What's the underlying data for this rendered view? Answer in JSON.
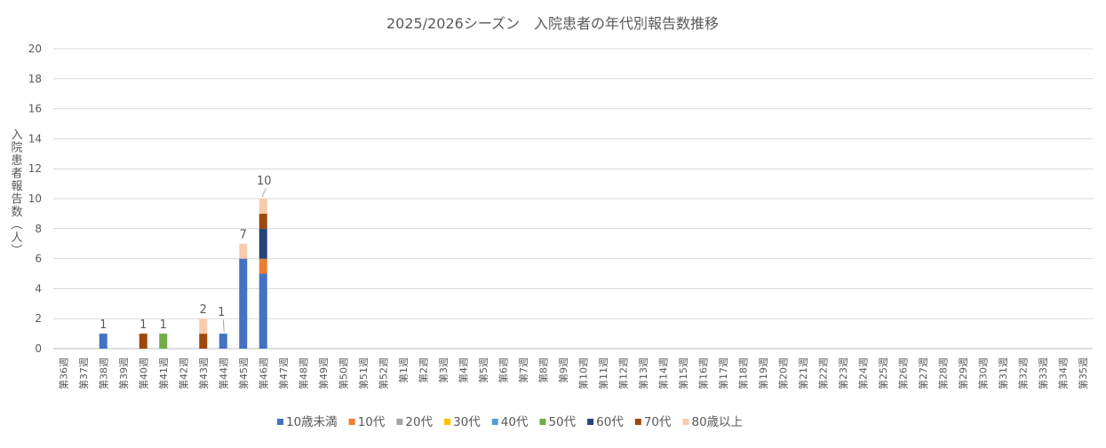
{
  "chart_data": {
    "type": "bar",
    "stacked": true,
    "title": "2025/2026シーズン　入院患者の年代別報告数推移",
    "ylabel": "入院患者報告数（人）",
    "xlabel": "",
    "ylim": [
      0,
      20
    ],
    "yticks": [
      0,
      2,
      4,
      6,
      8,
      10,
      12,
      14,
      16,
      18,
      20
    ],
    "grid": true,
    "legend_position": "bottom",
    "categories": [
      "第36週",
      "第37週",
      "第38週",
      "第39週",
      "第40週",
      "第41週",
      "第42週",
      "第43週",
      "第44週",
      "第45週",
      "第46週",
      "第47週",
      "第48週",
      "第49週",
      "第50週",
      "第51週",
      "第52週",
      "第1週",
      "第2週",
      "第3週",
      "第4週",
      "第5週",
      "第6週",
      "第7週",
      "第8週",
      "第9週",
      "第10週",
      "第11週",
      "第12週",
      "第13週",
      "第14週",
      "第15週",
      "第16週",
      "第17週",
      "第18週",
      "第19週",
      "第20週",
      "第21週",
      "第22週",
      "第23週",
      "第24週",
      "第25週",
      "第26週",
      "第27週",
      "第28週",
      "第29週",
      "第30週",
      "第31週",
      "第32週",
      "第33週",
      "第34週",
      "第35週"
    ],
    "series": [
      {
        "name": "10歳未満",
        "color": "#4472C4",
        "values": [
          0,
          0,
          1,
          0,
          0,
          0,
          0,
          0,
          1,
          6,
          5,
          0,
          0,
          0,
          0,
          0,
          0,
          0,
          0,
          0,
          0,
          0,
          0,
          0,
          0,
          0,
          0,
          0,
          0,
          0,
          0,
          0,
          0,
          0,
          0,
          0,
          0,
          0,
          0,
          0,
          0,
          0,
          0,
          0,
          0,
          0,
          0,
          0,
          0,
          0,
          0,
          0
        ]
      },
      {
        "name": "10代",
        "color": "#ED7D31",
        "values": [
          0,
          0,
          0,
          0,
          0,
          0,
          0,
          0,
          0,
          0,
          1,
          0,
          0,
          0,
          0,
          0,
          0,
          0,
          0,
          0,
          0,
          0,
          0,
          0,
          0,
          0,
          0,
          0,
          0,
          0,
          0,
          0,
          0,
          0,
          0,
          0,
          0,
          0,
          0,
          0,
          0,
          0,
          0,
          0,
          0,
          0,
          0,
          0,
          0,
          0,
          0,
          0
        ]
      },
      {
        "name": "20代",
        "color": "#A5A5A5",
        "values": [
          0,
          0,
          0,
          0,
          0,
          0,
          0,
          0,
          0,
          0,
          0,
          0,
          0,
          0,
          0,
          0,
          0,
          0,
          0,
          0,
          0,
          0,
          0,
          0,
          0,
          0,
          0,
          0,
          0,
          0,
          0,
          0,
          0,
          0,
          0,
          0,
          0,
          0,
          0,
          0,
          0,
          0,
          0,
          0,
          0,
          0,
          0,
          0,
          0,
          0,
          0,
          0
        ]
      },
      {
        "name": "30代",
        "color": "#FFC000",
        "values": [
          0,
          0,
          0,
          0,
          0,
          0,
          0,
          0,
          0,
          0,
          0,
          0,
          0,
          0,
          0,
          0,
          0,
          0,
          0,
          0,
          0,
          0,
          0,
          0,
          0,
          0,
          0,
          0,
          0,
          0,
          0,
          0,
          0,
          0,
          0,
          0,
          0,
          0,
          0,
          0,
          0,
          0,
          0,
          0,
          0,
          0,
          0,
          0,
          0,
          0,
          0,
          0
        ]
      },
      {
        "name": "40代",
        "color": "#5B9BD5",
        "values": [
          0,
          0,
          0,
          0,
          0,
          0,
          0,
          0,
          0,
          0,
          0,
          0,
          0,
          0,
          0,
          0,
          0,
          0,
          0,
          0,
          0,
          0,
          0,
          0,
          0,
          0,
          0,
          0,
          0,
          0,
          0,
          0,
          0,
          0,
          0,
          0,
          0,
          0,
          0,
          0,
          0,
          0,
          0,
          0,
          0,
          0,
          0,
          0,
          0,
          0,
          0,
          0
        ]
      },
      {
        "name": "50代",
        "color": "#70AD47",
        "values": [
          0,
          0,
          0,
          0,
          0,
          1,
          0,
          0,
          0,
          0,
          0,
          0,
          0,
          0,
          0,
          0,
          0,
          0,
          0,
          0,
          0,
          0,
          0,
          0,
          0,
          0,
          0,
          0,
          0,
          0,
          0,
          0,
          0,
          0,
          0,
          0,
          0,
          0,
          0,
          0,
          0,
          0,
          0,
          0,
          0,
          0,
          0,
          0,
          0,
          0,
          0,
          0
        ]
      },
      {
        "name": "60代",
        "color": "#264478",
        "values": [
          0,
          0,
          0,
          0,
          0,
          0,
          0,
          0,
          0,
          0,
          2,
          0,
          0,
          0,
          0,
          0,
          0,
          0,
          0,
          0,
          0,
          0,
          0,
          0,
          0,
          0,
          0,
          0,
          0,
          0,
          0,
          0,
          0,
          0,
          0,
          0,
          0,
          0,
          0,
          0,
          0,
          0,
          0,
          0,
          0,
          0,
          0,
          0,
          0,
          0,
          0,
          0
        ]
      },
      {
        "name": "70代",
        "color": "#9E480E",
        "values": [
          0,
          0,
          0,
          0,
          1,
          0,
          0,
          1,
          0,
          0,
          1,
          0,
          0,
          0,
          0,
          0,
          0,
          0,
          0,
          0,
          0,
          0,
          0,
          0,
          0,
          0,
          0,
          0,
          0,
          0,
          0,
          0,
          0,
          0,
          0,
          0,
          0,
          0,
          0,
          0,
          0,
          0,
          0,
          0,
          0,
          0,
          0,
          0,
          0,
          0,
          0,
          0
        ]
      },
      {
        "name": "80歳以上",
        "color": "#F8CBAD",
        "values": [
          0,
          0,
          0,
          0,
          0,
          0,
          0,
          1,
          0,
          1,
          1,
          0,
          0,
          0,
          0,
          0,
          0,
          0,
          0,
          0,
          0,
          0,
          0,
          0,
          0,
          0,
          0,
          0,
          0,
          0,
          0,
          0,
          0,
          0,
          0,
          0,
          0,
          0,
          0,
          0,
          0,
          0,
          0,
          0,
          0,
          0,
          0,
          0,
          0,
          0,
          0,
          0
        ]
      }
    ],
    "totals_labels": [
      {
        "category": "第38週",
        "text": "1"
      },
      {
        "category": "第40週",
        "text": "1"
      },
      {
        "category": "第41週",
        "text": "1"
      },
      {
        "category": "第43週",
        "text": "2"
      },
      {
        "category": "第44週",
        "text": "1"
      },
      {
        "category": "第45週",
        "text": "7"
      },
      {
        "category": "第46週",
        "text": "10"
      }
    ]
  }
}
